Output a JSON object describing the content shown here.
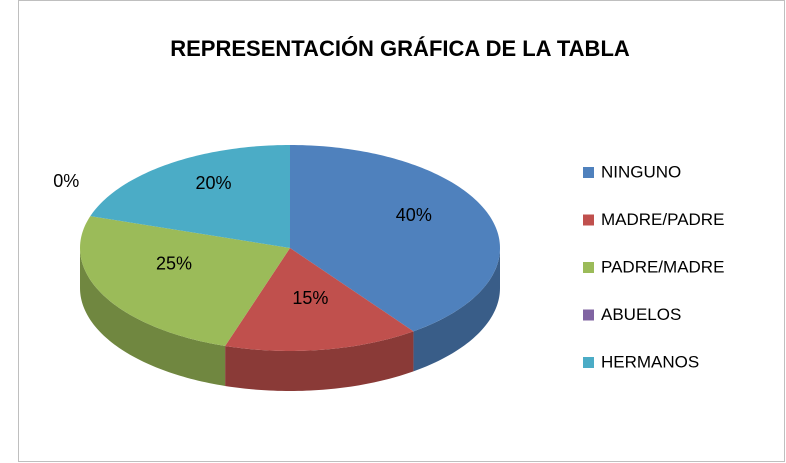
{
  "chart_data": {
    "type": "pie",
    "title": "REPRESENTACIÓN GRÁFICA DE LA TABLA",
    "categories": [
      "NINGUNO",
      "MADRE/PADRE",
      "PADRE/MADRE",
      "ABUELOS",
      "HERMANOS"
    ],
    "values": [
      40,
      15,
      25,
      0,
      20
    ],
    "value_labels": [
      "40%",
      "15%",
      "25%",
      "0%",
      "20%"
    ],
    "colors": [
      "#4f81bd",
      "#c0504d",
      "#9bbb59",
      "#8064a2",
      "#4bacc6"
    ],
    "legend": "right"
  }
}
